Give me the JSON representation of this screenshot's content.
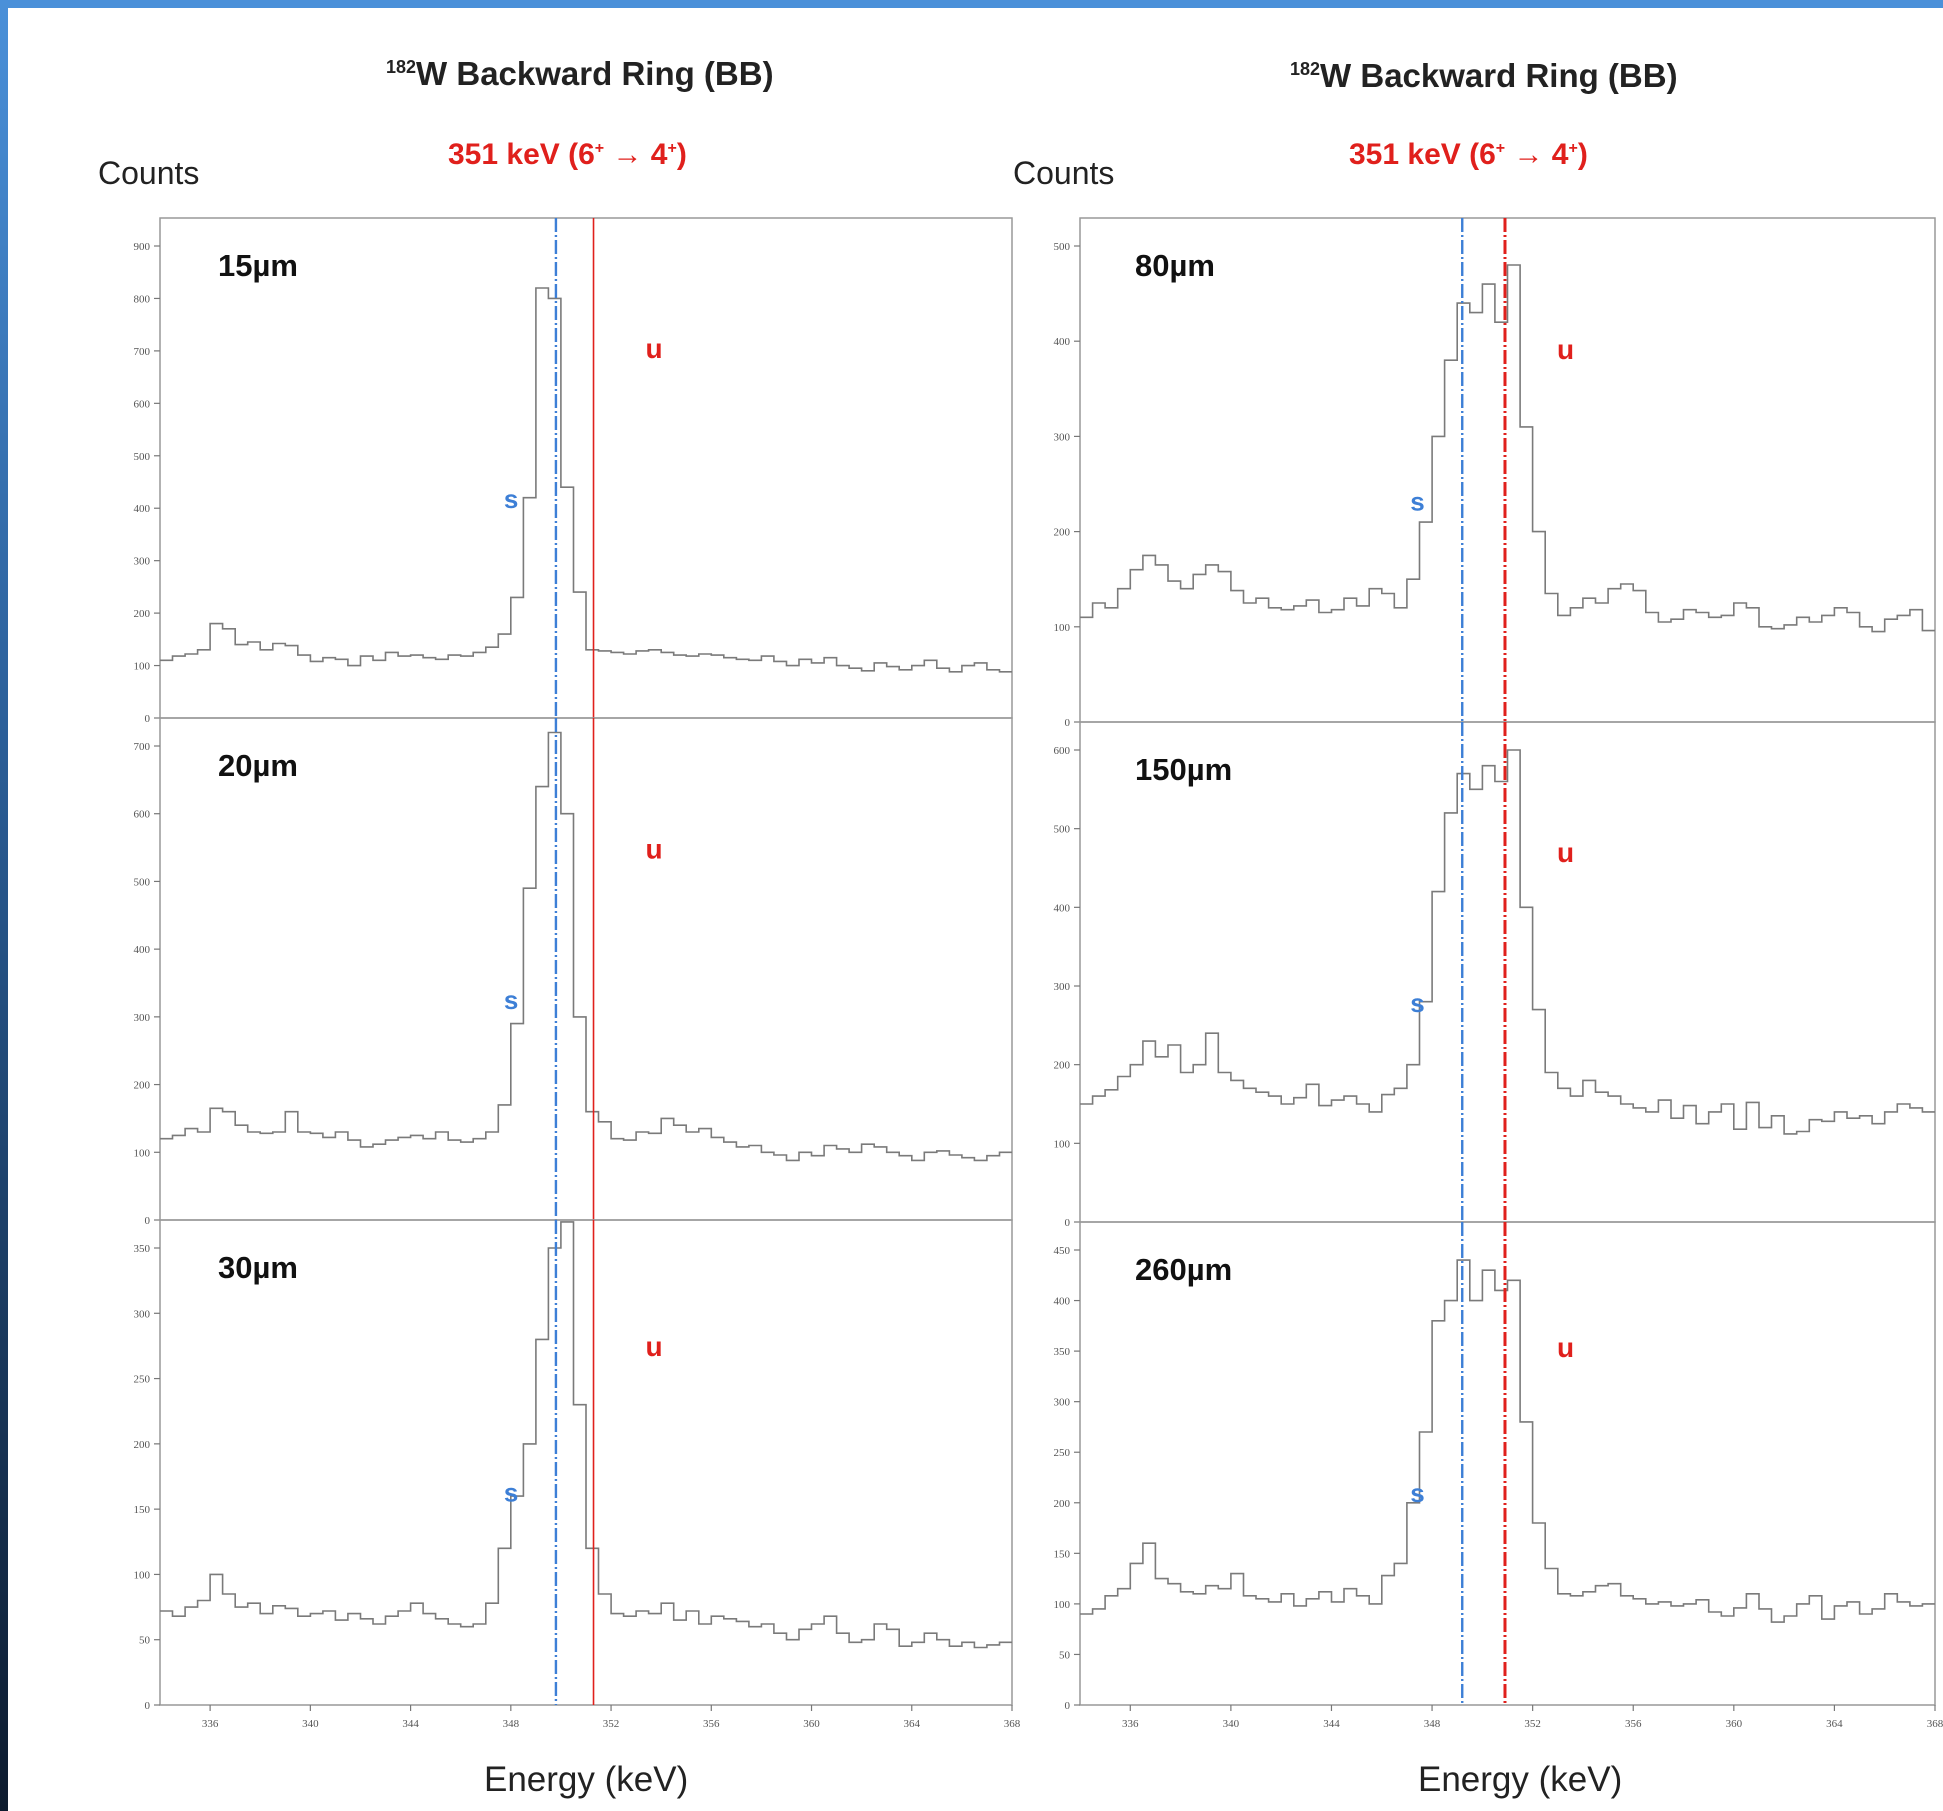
{
  "figure": {
    "ylabel": "Counts",
    "xlabel": "Energy (keV)",
    "title_left": {
      "mass": "182",
      "rest": "W Backward Ring (BB)"
    },
    "title_right": {
      "mass": "182",
      "rest": "W Backward Ring (BB)"
    },
    "transition_left": {
      "energy": "351 keV (6",
      "arrow": " → 4",
      "close": ")",
      "sup1": "+",
      "sup2": "+"
    },
    "transition_right": {
      "energy": "351 keV (6",
      "arrow": " → 4",
      "close": ")",
      "sup1": "+",
      "sup2": "+"
    },
    "marker_labels": {
      "shifted": "s",
      "unshifted": "u"
    },
    "colors": {
      "spectrum": "#7a7a7a",
      "shifted": "#3d7fd6",
      "unshifted": "#e0201c",
      "frame": "#999999"
    }
  },
  "chart_data": [
    {
      "type": "line",
      "panel": "15µm",
      "xlim": [
        334,
        368
      ],
      "ylim": [
        0,
        900
      ],
      "yticks": [
        0,
        100,
        200,
        300,
        400,
        500,
        600,
        700,
        800,
        900
      ],
      "xticks": [
        336,
        340,
        344,
        348,
        352,
        356,
        360,
        364,
        368
      ],
      "markers": {
        "shifted": 349.8,
        "unshifted": 351.3
      },
      "x": [
        334.0,
        334.5,
        335.0,
        335.5,
        336.0,
        336.5,
        337.0,
        337.5,
        338.0,
        338.5,
        339.0,
        339.5,
        340.0,
        340.5,
        341.0,
        341.5,
        342.0,
        342.5,
        343.0,
        343.5,
        344.0,
        344.5,
        345.0,
        345.5,
        346.0,
        346.5,
        347.0,
        347.5,
        348.0,
        348.5,
        349.0,
        349.5,
        350.0,
        350.5,
        351.0,
        351.5,
        352.0,
        352.5,
        353.0,
        353.5,
        354.0,
        354.5,
        355.0,
        355.5,
        356.0,
        356.5,
        357.0,
        357.5,
        358.0,
        358.5,
        359.0,
        359.5,
        360.0,
        360.5,
        361.0,
        361.5,
        362.0,
        362.5,
        363.0,
        363.5,
        364.0,
        364.5,
        365.0,
        365.5,
        366.0,
        366.5,
        367.0,
        367.5
      ],
      "y": [
        110,
        118,
        122,
        130,
        180,
        170,
        140,
        145,
        130,
        142,
        138,
        120,
        108,
        115,
        112,
        100,
        118,
        110,
        125,
        118,
        120,
        115,
        112,
        120,
        118,
        125,
        135,
        160,
        230,
        420,
        820,
        800,
        440,
        240,
        130,
        128,
        125,
        122,
        128,
        130,
        125,
        120,
        118,
        122,
        120,
        115,
        112,
        110,
        118,
        108,
        100,
        112,
        105,
        115,
        100,
        95,
        90,
        105,
        98,
        92,
        100,
        110,
        95,
        88,
        100,
        105,
        92,
        88
      ]
    },
    {
      "type": "line",
      "panel": "20µm",
      "xlim": [
        334,
        368
      ],
      "ylim": [
        0,
        700
      ],
      "yticks": [
        0,
        100,
        200,
        300,
        400,
        500,
        600,
        700
      ],
      "xticks": [
        336,
        340,
        344,
        348,
        352,
        356,
        360,
        364,
        368
      ],
      "markers": {
        "shifted": 349.8,
        "unshifted": 351.3
      },
      "x": [
        334.0,
        334.5,
        335.0,
        335.5,
        336.0,
        336.5,
        337.0,
        337.5,
        338.0,
        338.5,
        339.0,
        339.5,
        340.0,
        340.5,
        341.0,
        341.5,
        342.0,
        342.5,
        343.0,
        343.5,
        344.0,
        344.5,
        345.0,
        345.5,
        346.0,
        346.5,
        347.0,
        347.5,
        348.0,
        348.5,
        349.0,
        349.5,
        350.0,
        350.5,
        351.0,
        351.5,
        352.0,
        352.5,
        353.0,
        353.5,
        354.0,
        354.5,
        355.0,
        355.5,
        356.0,
        356.5,
        357.0,
        357.5,
        358.0,
        358.5,
        359.0,
        359.5,
        360.0,
        360.5,
        361.0,
        361.5,
        362.0,
        362.5,
        363.0,
        363.5,
        364.0,
        364.5,
        365.0,
        365.5,
        366.0,
        366.5,
        367.0,
        367.5
      ],
      "y": [
        120,
        125,
        135,
        130,
        165,
        160,
        140,
        130,
        128,
        130,
        160,
        130,
        128,
        122,
        130,
        118,
        108,
        112,
        118,
        122,
        125,
        120,
        130,
        118,
        115,
        120,
        130,
        170,
        290,
        490,
        640,
        720,
        600,
        300,
        160,
        145,
        120,
        118,
        130,
        128,
        150,
        140,
        130,
        135,
        122,
        115,
        108,
        110,
        100,
        96,
        88,
        100,
        95,
        110,
        105,
        100,
        112,
        108,
        100,
        95,
        88,
        100,
        102,
        96,
        92,
        88,
        95,
        100
      ]
    },
    {
      "type": "line",
      "panel": "30µm",
      "xlim": [
        334,
        368
      ],
      "ylim": [
        0,
        350
      ],
      "yticks": [
        0,
        50,
        100,
        150,
        200,
        250,
        300,
        350
      ],
      "xticks": [
        336,
        340,
        344,
        348,
        352,
        356,
        360,
        364,
        368
      ],
      "markers": {
        "shifted": 349.8,
        "unshifted": 351.3
      },
      "x": [
        334.0,
        334.5,
        335.0,
        335.5,
        336.0,
        336.5,
        337.0,
        337.5,
        338.0,
        338.5,
        339.0,
        339.5,
        340.0,
        340.5,
        341.0,
        341.5,
        342.0,
        342.5,
        343.0,
        343.5,
        344.0,
        344.5,
        345.0,
        345.5,
        346.0,
        346.5,
        347.0,
        347.5,
        348.0,
        348.5,
        349.0,
        349.5,
        350.0,
        350.5,
        351.0,
        351.5,
        352.0,
        352.5,
        353.0,
        353.5,
        354.0,
        354.5,
        355.0,
        355.5,
        356.0,
        356.5,
        357.0,
        357.5,
        358.0,
        358.5,
        359.0,
        359.5,
        360.0,
        360.5,
        361.0,
        361.5,
        362.0,
        362.5,
        363.0,
        363.5,
        364.0,
        364.5,
        365.0,
        365.5,
        366.0,
        366.5,
        367.0,
        367.5
      ],
      "y": [
        72,
        68,
        75,
        80,
        100,
        85,
        75,
        78,
        70,
        76,
        74,
        68,
        70,
        72,
        65,
        70,
        66,
        62,
        68,
        72,
        78,
        70,
        66,
        62,
        60,
        62,
        78,
        120,
        160,
        200,
        280,
        350,
        370,
        230,
        120,
        85,
        70,
        68,
        72,
        70,
        78,
        65,
        72,
        62,
        68,
        66,
        64,
        60,
        62,
        55,
        50,
        58,
        62,
        68,
        55,
        48,
        50,
        62,
        58,
        45,
        48,
        55,
        50,
        45,
        48,
        44,
        46,
        48
      ]
    },
    {
      "type": "line",
      "panel": "80µm",
      "xlim": [
        334,
        368
      ],
      "ylim": [
        0,
        500
      ],
      "yticks": [
        0,
        100,
        200,
        300,
        400,
        500
      ],
      "xticks": [
        336,
        340,
        344,
        348,
        352,
        356,
        360,
        364,
        368
      ],
      "markers": {
        "shifted": 349.2,
        "unshifted": 350.9
      },
      "x": [
        334.0,
        334.5,
        335.0,
        335.5,
        336.0,
        336.5,
        337.0,
        337.5,
        338.0,
        338.5,
        339.0,
        339.5,
        340.0,
        340.5,
        341.0,
        341.5,
        342.0,
        342.5,
        343.0,
        343.5,
        344.0,
        344.5,
        345.0,
        345.5,
        346.0,
        346.5,
        347.0,
        347.5,
        348.0,
        348.5,
        349.0,
        349.5,
        350.0,
        350.5,
        351.0,
        351.5,
        352.0,
        352.5,
        353.0,
        353.5,
        354.0,
        354.5,
        355.0,
        355.5,
        356.0,
        356.5,
        357.0,
        357.5,
        358.0,
        358.5,
        359.0,
        359.5,
        360.0,
        360.5,
        361.0,
        361.5,
        362.0,
        362.5,
        363.0,
        363.5,
        364.0,
        364.5,
        365.0,
        365.5,
        366.0,
        366.5,
        367.0,
        367.5
      ],
      "y": [
        110,
        125,
        120,
        140,
        160,
        175,
        165,
        148,
        140,
        155,
        165,
        158,
        138,
        125,
        130,
        120,
        118,
        122,
        128,
        115,
        118,
        130,
        122,
        140,
        135,
        120,
        150,
        210,
        300,
        380,
        440,
        430,
        460,
        420,
        480,
        310,
        200,
        135,
        112,
        120,
        130,
        125,
        140,
        145,
        138,
        115,
        105,
        108,
        118,
        115,
        110,
        112,
        125,
        120,
        100,
        98,
        102,
        110,
        105,
        112,
        120,
        115,
        100,
        95,
        108,
        112,
        118,
        96
      ]
    },
    {
      "type": "line",
      "panel": "150µm",
      "xlim": [
        334,
        368
      ],
      "ylim": [
        0,
        600
      ],
      "yticks": [
        0,
        100,
        200,
        300,
        400,
        500,
        600
      ],
      "xticks": [
        336,
        340,
        344,
        348,
        352,
        356,
        360,
        364,
        368
      ],
      "markers": {
        "shifted": 349.2,
        "unshifted": 350.9
      },
      "x": [
        334.0,
        334.5,
        335.0,
        335.5,
        336.0,
        336.5,
        337.0,
        337.5,
        338.0,
        338.5,
        339.0,
        339.5,
        340.0,
        340.5,
        341.0,
        341.5,
        342.0,
        342.5,
        343.0,
        343.5,
        344.0,
        344.5,
        345.0,
        345.5,
        346.0,
        346.5,
        347.0,
        347.5,
        348.0,
        348.5,
        349.0,
        349.5,
        350.0,
        350.5,
        351.0,
        351.5,
        352.0,
        352.5,
        353.0,
        353.5,
        354.0,
        354.5,
        355.0,
        355.5,
        356.0,
        356.5,
        357.0,
        357.5,
        358.0,
        358.5,
        359.0,
        359.5,
        360.0,
        360.5,
        361.0,
        361.5,
        362.0,
        362.5,
        363.0,
        363.5,
        364.0,
        364.5,
        365.0,
        365.5,
        366.0,
        366.5,
        367.0,
        367.5
      ],
      "y": [
        150,
        160,
        168,
        185,
        200,
        230,
        210,
        225,
        190,
        200,
        240,
        190,
        180,
        170,
        165,
        160,
        150,
        158,
        175,
        148,
        155,
        160,
        150,
        140,
        162,
        170,
        200,
        280,
        420,
        520,
        570,
        550,
        580,
        560,
        600,
        400,
        270,
        190,
        170,
        160,
        180,
        165,
        160,
        150,
        145,
        140,
        155,
        132,
        148,
        125,
        140,
        150,
        118,
        152,
        120,
        135,
        112,
        115,
        130,
        128,
        140,
        132,
        135,
        125,
        140,
        150,
        145,
        140
      ]
    },
    {
      "type": "line",
      "panel": "260µm",
      "xlim": [
        334,
        368
      ],
      "ylim": [
        0,
        450
      ],
      "yticks": [
        0,
        50,
        100,
        150,
        200,
        250,
        300,
        350,
        400,
        450
      ],
      "xticks": [
        336,
        340,
        344,
        348,
        352,
        356,
        360,
        364,
        368
      ],
      "markers": {
        "shifted": 349.2,
        "unshifted": 350.9
      },
      "x": [
        334.0,
        334.5,
        335.0,
        335.5,
        336.0,
        336.5,
        337.0,
        337.5,
        338.0,
        338.5,
        339.0,
        339.5,
        340.0,
        340.5,
        341.0,
        341.5,
        342.0,
        342.5,
        343.0,
        343.5,
        344.0,
        344.5,
        345.0,
        345.5,
        346.0,
        346.5,
        347.0,
        347.5,
        348.0,
        348.5,
        349.0,
        349.5,
        350.0,
        350.5,
        351.0,
        351.5,
        352.0,
        352.5,
        353.0,
        353.5,
        354.0,
        354.5,
        355.0,
        355.5,
        356.0,
        356.5,
        357.0,
        357.5,
        358.0,
        358.5,
        359.0,
        359.5,
        360.0,
        360.5,
        361.0,
        361.5,
        362.0,
        362.5,
        363.0,
        363.5,
        364.0,
        364.5,
        365.0,
        365.5,
        366.0,
        366.5,
        367.0,
        367.5
      ],
      "y": [
        90,
        95,
        108,
        115,
        140,
        160,
        125,
        120,
        112,
        110,
        118,
        115,
        130,
        108,
        105,
        102,
        110,
        98,
        105,
        112,
        102,
        115,
        108,
        100,
        128,
        140,
        200,
        270,
        380,
        400,
        440,
        400,
        430,
        410,
        420,
        280,
        180,
        135,
        110,
        108,
        112,
        118,
        120,
        108,
        105,
        100,
        102,
        98,
        100,
        104,
        92,
        88,
        96,
        110,
        95,
        82,
        88,
        100,
        108,
        85,
        98,
        102,
        90,
        95,
        110,
        102,
        98,
        100
      ]
    }
  ]
}
